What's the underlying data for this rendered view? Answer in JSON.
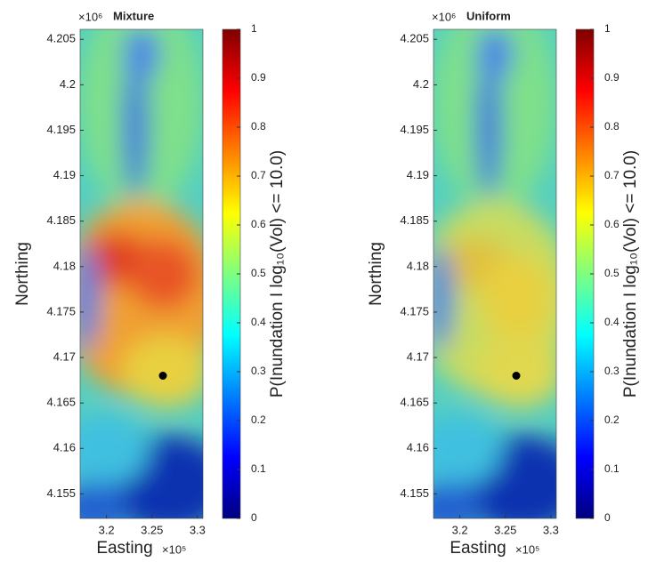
{
  "chart_data": [
    {
      "type": "heatmap",
      "title": "Mixture",
      "xlabel": "Easting",
      "ylabel": "Northing",
      "x_multiplier": "×10⁵",
      "y_multiplier": "×10⁶",
      "xlim": [
        3.171,
        3.306
      ],
      "xticks": [
        3.2,
        3.25,
        3.3
      ],
      "ylim": [
        4.1523,
        4.2061
      ],
      "yticks": [
        4.155,
        4.16,
        4.165,
        4.17,
        4.175,
        4.18,
        4.185,
        4.19,
        4.195,
        4.2,
        4.205
      ],
      "marker": {
        "x": 3.262,
        "y": 4.168,
        "color": "#000000"
      },
      "colorbar": {
        "label": "P(Inundation I log₁₀(Vol) <= 10.0)",
        "colormap": "jet",
        "lim": [
          0,
          1
        ],
        "ticks": [
          0,
          0.1,
          0.2,
          0.3,
          0.4,
          0.5,
          0.6,
          0.7,
          0.8,
          0.9,
          1
        ]
      }
    },
    {
      "type": "heatmap",
      "title": "Uniform",
      "xlabel": "Easting",
      "ylabel": "Northing",
      "x_multiplier": "×10⁵",
      "y_multiplier": "×10⁶",
      "xlim": [
        3.171,
        3.306
      ],
      "xticks": [
        3.2,
        3.25,
        3.3
      ],
      "ylim": [
        4.1523,
        4.2061
      ],
      "yticks": [
        4.155,
        4.16,
        4.165,
        4.17,
        4.175,
        4.18,
        4.185,
        4.19,
        4.195,
        4.2,
        4.205
      ],
      "marker": {
        "x": 3.262,
        "y": 4.168,
        "color": "#000000"
      },
      "colorbar": {
        "label": "P(Inundation I log₁₀(Vol) <= 10.0)",
        "colormap": "jet",
        "lim": [
          0,
          1
        ],
        "ticks": [
          0,
          0.1,
          0.2,
          0.3,
          0.4,
          0.5,
          0.6,
          0.7,
          0.8,
          0.9,
          1
        ]
      }
    }
  ]
}
